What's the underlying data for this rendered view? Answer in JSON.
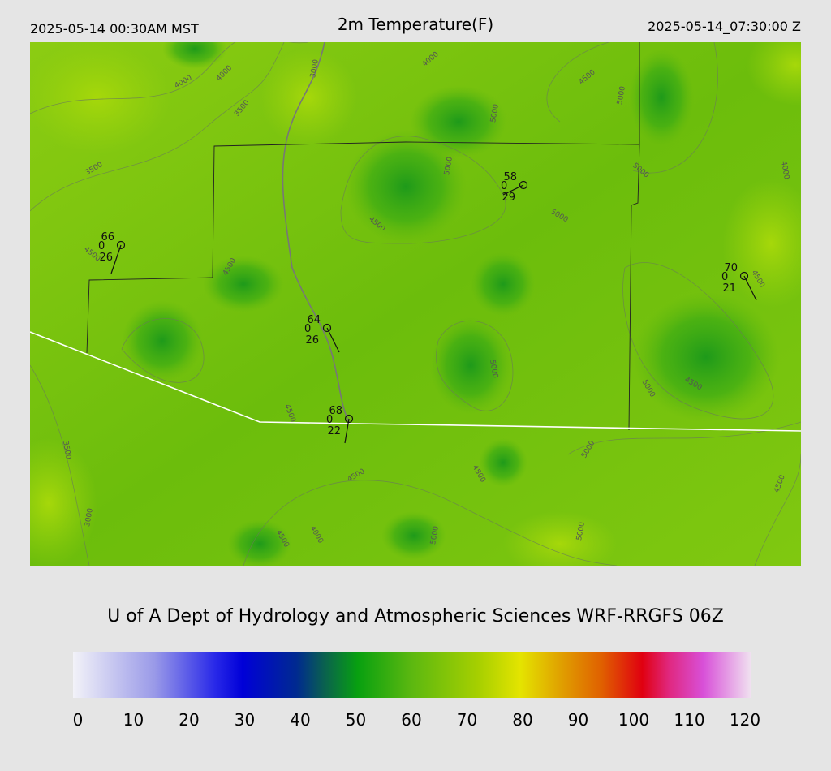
{
  "header": {
    "left": "2025-05-14 00:30AM MST",
    "title": "2m Temperature(F)",
    "right": "2025-05-14_07:30:00 Z"
  },
  "stations": [
    {
      "temp": "66",
      "wind": "0",
      "dew": "26"
    },
    {
      "temp": "58",
      "wind": "0",
      "dew": "29"
    },
    {
      "temp": "70",
      "wind": "0",
      "dew": "21"
    },
    {
      "temp": "64",
      "wind": "0",
      "dew": "26"
    },
    {
      "temp": "68",
      "wind": "0",
      "dew": "22"
    }
  ],
  "contour_labels": [
    "4000",
    "4000",
    "3500",
    "3000",
    "4000",
    "4500",
    "5000",
    "5000",
    "5000",
    "3500",
    "4500",
    "5000",
    "5000",
    "4000",
    "4500",
    "4500",
    "4500",
    "5000",
    "5000",
    "4500",
    "4500",
    "3500",
    "4500",
    "4500",
    "5000",
    "4500",
    "3000",
    "4000",
    "4500",
    "5000",
    "5000"
  ],
  "credit": "U of A Dept of Hydrology and Atmospheric Sciences WRF-RRGFS 06Z",
  "colorbar": {
    "ticks": [
      0,
      10,
      20,
      30,
      40,
      50,
      60,
      70,
      80,
      90,
      100,
      110,
      120
    ]
  }
}
